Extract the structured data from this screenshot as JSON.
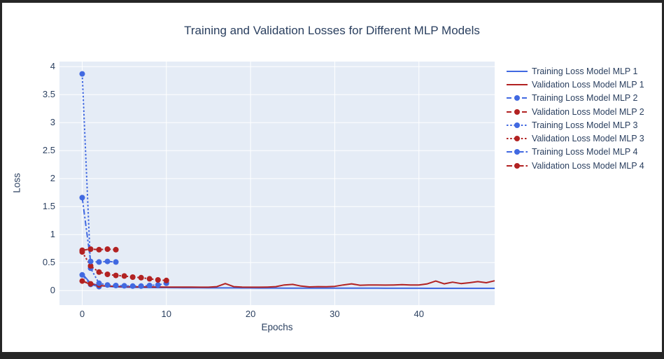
{
  "frame_color": "#2b2b2b",
  "chart_data": {
    "type": "line",
    "title": "Training and Validation Losses for Different MLP Models",
    "xlabel": "Epochs",
    "ylabel": "Loss",
    "xlim": [
      -2.7,
      49
    ],
    "ylim": [
      -0.26,
      4.09
    ],
    "xticks": [
      0,
      10,
      20,
      30,
      40
    ],
    "yticks": [
      0,
      0.5,
      1,
      1.5,
      2,
      2.5,
      3,
      3.5,
      4
    ],
    "grid": true,
    "legend_position": "right",
    "plot_bg": "#E5ECF6",
    "grid_color": "#FFFFFF",
    "text_color": "#2a3f5f",
    "colors": {
      "training": "#4169E1",
      "validation": "#B22222"
    },
    "series": [
      {
        "name": "Training Loss Model MLP 1",
        "color": "#4169E1",
        "dash": "solid",
        "markers": false,
        "x": [
          0,
          1,
          2,
          3,
          4,
          5,
          6,
          7,
          8,
          9,
          10,
          11,
          12,
          13,
          14,
          15,
          16,
          17,
          18,
          19,
          20,
          21,
          22,
          23,
          24,
          25,
          26,
          27,
          28,
          29,
          30,
          31,
          32,
          33,
          34,
          35,
          36,
          37,
          38,
          39,
          40,
          41,
          42,
          43,
          44,
          45,
          46,
          47,
          48,
          49
        ],
        "y": [
          0.3,
          0.13,
          0.09,
          0.075,
          0.065,
          0.06,
          0.058,
          0.056,
          0.054,
          0.053,
          0.052,
          0.051,
          0.05,
          0.05,
          0.049,
          0.048,
          0.048,
          0.047,
          0.047,
          0.046,
          0.046,
          0.045,
          0.045,
          0.045,
          0.044,
          0.044,
          0.044,
          0.043,
          0.043,
          0.043,
          0.043,
          0.042,
          0.042,
          0.042,
          0.042,
          0.042,
          0.041,
          0.041,
          0.041,
          0.041,
          0.041,
          0.04,
          0.04,
          0.04,
          0.04,
          0.04,
          0.04,
          0.04,
          0.04,
          0.04
        ]
      },
      {
        "name": "Validation Loss Model MLP 1",
        "color": "#B22222",
        "dash": "solid",
        "markers": false,
        "x": [
          0,
          1,
          2,
          3,
          4,
          5,
          6,
          7,
          8,
          9,
          10,
          11,
          12,
          13,
          14,
          15,
          16,
          17,
          18,
          19,
          20,
          21,
          22,
          23,
          24,
          25,
          26,
          27,
          28,
          29,
          30,
          31,
          32,
          33,
          34,
          35,
          36,
          37,
          38,
          39,
          40,
          41,
          42,
          43,
          44,
          45,
          46,
          47,
          48,
          49
        ],
        "y": [
          0.17,
          0.11,
          0.09,
          0.08,
          0.075,
          0.07,
          0.068,
          0.066,
          0.065,
          0.064,
          0.063,
          0.062,
          0.062,
          0.061,
          0.06,
          0.06,
          0.07,
          0.125,
          0.07,
          0.062,
          0.06,
          0.06,
          0.062,
          0.07,
          0.1,
          0.11,
          0.08,
          0.065,
          0.07,
          0.068,
          0.075,
          0.1,
          0.12,
          0.095,
          0.1,
          0.1,
          0.098,
          0.1,
          0.105,
          0.1,
          0.1,
          0.12,
          0.17,
          0.12,
          0.15,
          0.125,
          0.14,
          0.16,
          0.14,
          0.175
        ]
      },
      {
        "name": "Training Loss Model MLP 2",
        "color": "#4169E1",
        "dash": "dash",
        "markers": true,
        "x": [
          0,
          1,
          2
        ],
        "y": [
          0.28,
          0.11,
          0.07
        ]
      },
      {
        "name": "Validation Loss Model MLP 2",
        "color": "#B22222",
        "dash": "dash",
        "markers": true,
        "x": [
          0,
          1,
          2
        ],
        "y": [
          0.17,
          0.12,
          0.1
        ]
      },
      {
        "name": "Training Loss Model MLP 3",
        "color": "#4169E1",
        "dash": "dot",
        "markers": true,
        "x": [
          0,
          1,
          2,
          3,
          4,
          5,
          6,
          7,
          8,
          9,
          10
        ],
        "y": [
          3.87,
          0.4,
          0.13,
          0.1,
          0.09,
          0.085,
          0.08,
          0.08,
          0.09,
          0.1,
          0.13
        ]
      },
      {
        "name": "Validation Loss Model MLP 3",
        "color": "#B22222",
        "dash": "dot",
        "markers": true,
        "x": [
          0,
          1,
          2,
          3,
          4,
          5,
          6,
          7,
          8,
          9,
          10
        ],
        "y": [
          0.69,
          0.44,
          0.33,
          0.29,
          0.27,
          0.26,
          0.24,
          0.23,
          0.21,
          0.19,
          0.18
        ]
      },
      {
        "name": "Training Loss Model MLP 4",
        "color": "#4169E1",
        "dash": "dashdot",
        "markers": true,
        "x": [
          0,
          1,
          2,
          3,
          4
        ],
        "y": [
          1.66,
          0.52,
          0.51,
          0.52,
          0.51
        ]
      },
      {
        "name": "Validation Loss Model MLP 4",
        "color": "#B22222",
        "dash": "dashdot",
        "markers": true,
        "x": [
          0,
          1,
          2,
          3,
          4
        ],
        "y": [
          0.72,
          0.74,
          0.73,
          0.74,
          0.73
        ]
      }
    ]
  }
}
